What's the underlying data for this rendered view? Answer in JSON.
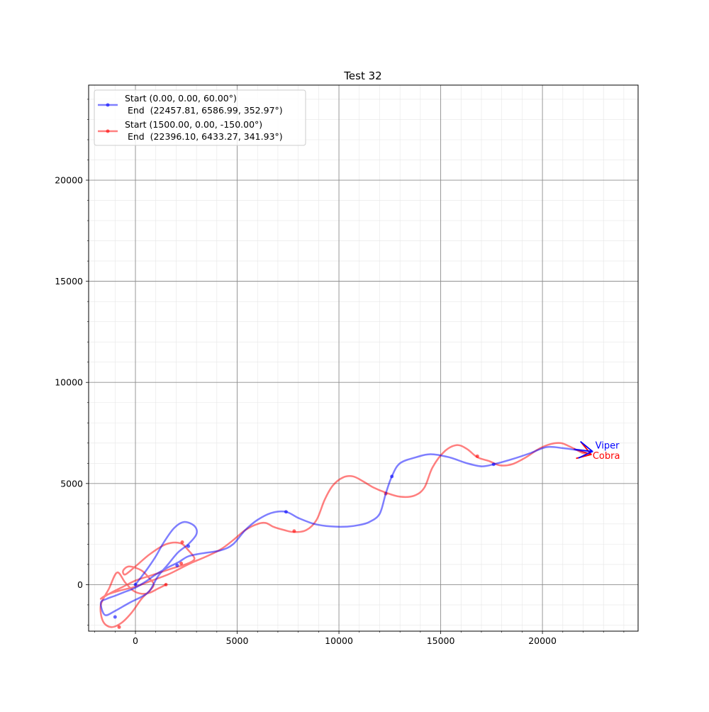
{
  "chart_data": {
    "type": "line",
    "title": "Test 32",
    "xlabel": "",
    "ylabel": "",
    "xlim": [
      -2300,
      24700
    ],
    "ylim": [
      -2300,
      24700
    ],
    "xticks": [
      0,
      5000,
      10000,
      15000,
      20000
    ],
    "yticks": [
      0,
      5000,
      10000,
      15000,
      20000
    ],
    "xtick_labels": [
      "0",
      "5000",
      "10000",
      "15000",
      "20000"
    ],
    "ytick_labels": [
      "0",
      "5000",
      "10000",
      "15000",
      "20000"
    ],
    "major_grid": true,
    "minor_grid": true,
    "legend_position": "top-left",
    "series": [
      {
        "name": "Start (0.00, 0.00, 60.00°)\n End  (22457.81, 6586.99, 352.97°)",
        "legend_line1": "Start (0.00, 0.00, 60.00°)",
        "legend_line2": " End  (22457.81, 6586.99, 352.97°)",
        "label": "Viper",
        "color": "#0000ff",
        "x": [
          0,
          600,
          1000,
          1400,
          1900,
          2400,
          2900,
          3000,
          2600,
          2100,
          1600,
          1100,
          700,
          300,
          -300,
          -1000,
          -1500,
          -1700,
          -1400,
          -1000,
          -500,
          0,
          500,
          1000,
          1500,
          2100,
          2600,
          3300,
          4200,
          4800,
          5400,
          6000,
          6700,
          7400,
          8000,
          8800,
          9600,
          10400,
          11000,
          11500,
          12000,
          12300,
          12600,
          13000,
          13800,
          14500,
          15400,
          16300,
          17000,
          17600,
          18500,
          19400,
          20200,
          21000,
          21700,
          22100,
          22457.81
        ],
        "y": [
          0,
          800,
          1400,
          2100,
          2800,
          3100,
          2900,
          2500,
          2000,
          1600,
          1000,
          400,
          -300,
          -600,
          -900,
          -1300,
          -1500,
          -900,
          -700,
          -550,
          -350,
          -150,
          150,
          500,
          800,
          1100,
          1400,
          1550,
          1700,
          2000,
          2700,
          3200,
          3550,
          3600,
          3300,
          3000,
          2880,
          2870,
          2950,
          3100,
          3500,
          4500,
          5350,
          6000,
          6300,
          6450,
          6300,
          6000,
          5850,
          5950,
          6200,
          6500,
          6800,
          6750,
          6650,
          6600,
          6586.99
        ],
        "markers_x": [
          0,
          -1000,
          2050,
          2600,
          7400,
          12600,
          17600
        ],
        "markers_y": [
          0,
          -1600,
          950,
          1900,
          3600,
          5350,
          5950
        ],
        "end_heading_deg": 352.97
      },
      {
        "name": "Start (1500.00, 0.00, -150.00°)\n End  (22396.10, 6433.27, 341.93°)",
        "legend_line1": "Start (1500.00, 0.00, -150.00°)",
        "legend_line2": " End  (22396.10, 6433.27, 341.93°)",
        "label": "Cobra",
        "color": "#ff0000",
        "x": [
          1500,
          1100,
          700,
          300,
          -100,
          -500,
          -900,
          -1300,
          -1700,
          -1600,
          -1200,
          -700,
          -200,
          300,
          700,
          900,
          700,
          300,
          -300,
          -600,
          -500,
          0,
          700,
          1500,
          2200,
          2600,
          2900,
          2700,
          2300,
          1800,
          1200,
          600,
          0,
          -600,
          -1200,
          -1700,
          -1400,
          -800,
          0,
          800,
          1600,
          2200,
          2800,
          3500,
          4200,
          4800,
          5400,
          6000,
          6400,
          6800,
          7300,
          7800,
          8400,
          8900,
          9300,
          9700,
          10200,
          10700,
          11200,
          11700,
          12300,
          13000,
          13700,
          14200,
          14600,
          15200,
          15800,
          16300,
          16800,
          17400,
          17900,
          18500,
          19200,
          19800,
          20400,
          20900,
          21300,
          21700,
          22000,
          22396.1
        ],
        "y": [
          0,
          -200,
          -400,
          -450,
          -300,
          100,
          600,
          -200,
          -1000,
          -1800,
          -2100,
          -1900,
          -1400,
          -700,
          -300,
          0,
          300,
          700,
          900,
          700,
          500,
          900,
          1500,
          2000,
          2050,
          1700,
          1300,
          1100,
          950,
          800,
          600,
          400,
          200,
          -100,
          -400,
          -700,
          -500,
          -300,
          -100,
          200,
          500,
          800,
          1100,
          1400,
          1750,
          2200,
          2700,
          3000,
          3050,
          2850,
          2700,
          2600,
          2700,
          3200,
          4200,
          4900,
          5300,
          5350,
          5100,
          4800,
          4550,
          4350,
          4400,
          4800,
          5800,
          6600,
          6900,
          6700,
          6300,
          6100,
          5900,
          5950,
          6300,
          6700,
          6950,
          7000,
          6850,
          6650,
          6500,
          6433.27
        ],
        "markers_x": [
          1500,
          -800,
          2300,
          2250,
          7800,
          12300,
          16800
        ],
        "markers_y": [
          0,
          -2100,
          2100,
          1050,
          2650,
          4500,
          6350
        ],
        "end_heading_deg": 341.93
      }
    ]
  }
}
